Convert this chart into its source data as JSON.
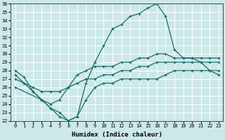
{
  "xlabel": "Humidex (Indice chaleur)",
  "bg_color": "#cce8e8",
  "grid_color": "#ffffff",
  "line_color": "#1a6b6b",
  "xlim": [
    -0.5,
    23.5
  ],
  "ylim": [
    22,
    36
  ],
  "xticks": [
    0,
    1,
    2,
    3,
    4,
    5,
    6,
    7,
    8,
    9,
    10,
    11,
    12,
    13,
    14,
    15,
    16,
    17,
    18,
    19,
    20,
    21,
    22,
    23
  ],
  "yticks": [
    22,
    23,
    24,
    25,
    26,
    27,
    28,
    29,
    30,
    31,
    32,
    33,
    34,
    35,
    36
  ],
  "line1_x": [
    0,
    1,
    2,
    3,
    4,
    5,
    6,
    7,
    8,
    9,
    10,
    11,
    12,
    13,
    14,
    15,
    16,
    17,
    18,
    19,
    20,
    21,
    22,
    23
  ],
  "line1_y": [
    28.0,
    27.2,
    25.5,
    24.5,
    23.5,
    22.5,
    22.0,
    22.5,
    26.5,
    29.0,
    31.0,
    33.0,
    33.5,
    34.5,
    34.8,
    35.5,
    36.0,
    34.5,
    30.5,
    29.5,
    29.5,
    29.0,
    28.0,
    27.5
  ],
  "line2_x": [
    0,
    1,
    2,
    3,
    4,
    5,
    6,
    7,
    8,
    9,
    10,
    11,
    12,
    13,
    14,
    15,
    16,
    17,
    18,
    19,
    20,
    21,
    22,
    23
  ],
  "line2_y": [
    27.5,
    26.5,
    25.5,
    24.5,
    24.0,
    24.5,
    26.0,
    27.5,
    28.0,
    28.5,
    28.5,
    28.5,
    29.0,
    29.0,
    29.5,
    29.5,
    30.0,
    30.0,
    29.5,
    29.5,
    29.5,
    29.5,
    29.5,
    29.5
  ],
  "line3_x": [
    0,
    1,
    2,
    3,
    4,
    5,
    6,
    7,
    8,
    9,
    10,
    11,
    12,
    13,
    14,
    15,
    16,
    17,
    18,
    19,
    20,
    21,
    22,
    23
  ],
  "line3_y": [
    27.0,
    26.5,
    26.0,
    25.5,
    25.5,
    25.5,
    26.0,
    26.5,
    27.0,
    27.0,
    27.5,
    27.5,
    28.0,
    28.0,
    28.5,
    28.5,
    29.0,
    29.0,
    29.0,
    29.0,
    29.0,
    29.0,
    29.0,
    29.0
  ],
  "line4_x": [
    0,
    3,
    4,
    5,
    6,
    7,
    8,
    9,
    10,
    11,
    12,
    13,
    14,
    15,
    16,
    17,
    18,
    19,
    20,
    21,
    22,
    23
  ],
  "line4_y": [
    26.0,
    24.5,
    23.5,
    23.0,
    22.0,
    22.5,
    24.5,
    26.0,
    26.5,
    26.5,
    27.0,
    27.0,
    27.0,
    27.0,
    27.0,
    27.5,
    28.0,
    28.0,
    28.0,
    28.0,
    28.0,
    28.0
  ]
}
